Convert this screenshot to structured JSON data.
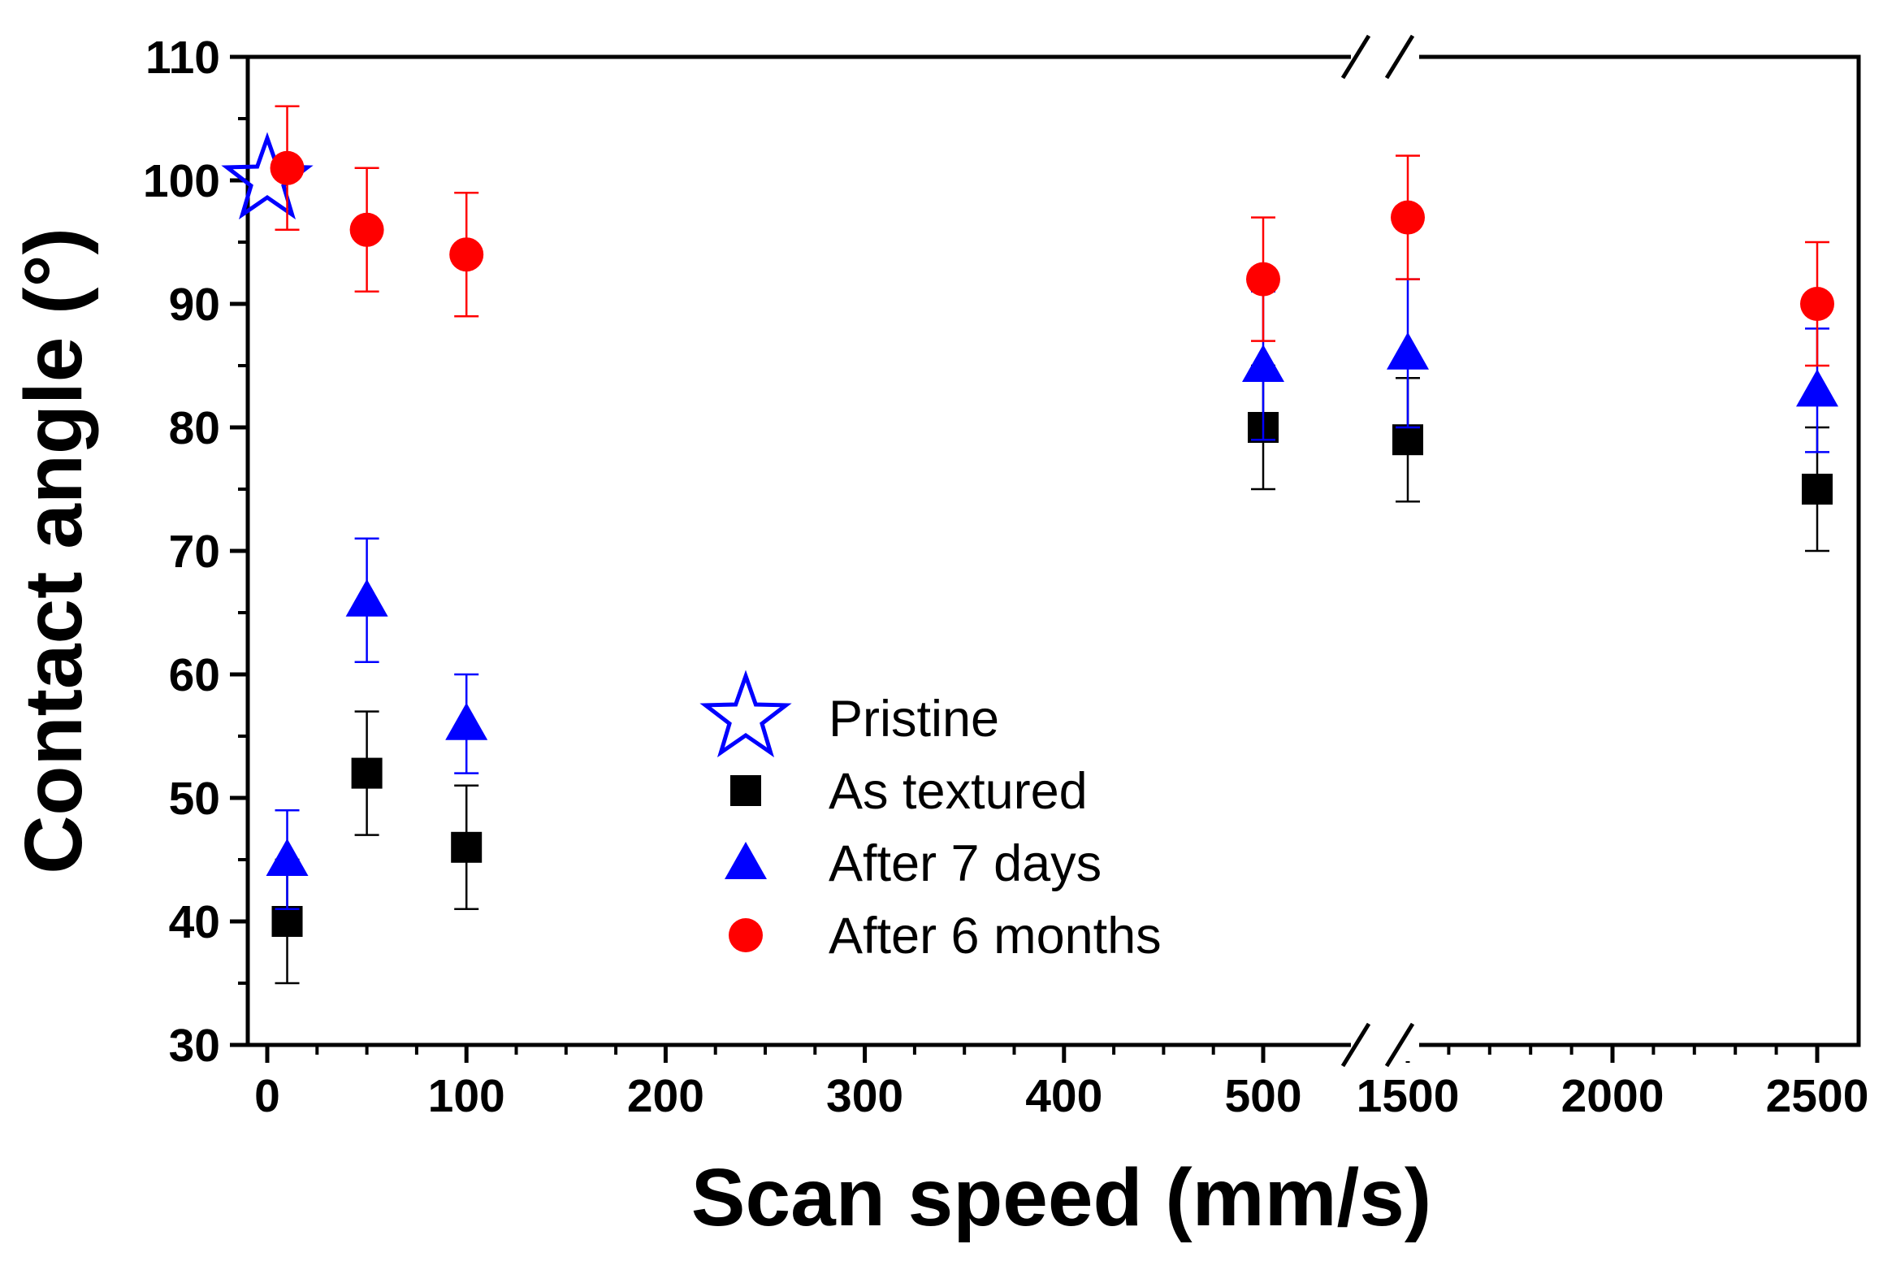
{
  "chart_data": {
    "type": "scatter",
    "title": "",
    "xlabel": "Scan speed (mm/s)",
    "ylabel": "Contact angle (°)",
    "ylim": [
      30,
      110
    ],
    "grid": false,
    "legend_position": "center",
    "x_axis": {
      "broken": true,
      "segments": [
        {
          "range": [
            0,
            500
          ]
        },
        {
          "range": [
            1500,
            2500
          ]
        }
      ],
      "tick_labels": [
        "0",
        "100",
        "200",
        "300",
        "400",
        "500",
        "1500",
        "2000",
        "2500"
      ]
    },
    "y_tick_labels": [
      "30",
      "40",
      "50",
      "60",
      "70",
      "80",
      "90",
      "100",
      "110"
    ],
    "series": [
      {
        "name": "Pristine",
        "marker": "star-open",
        "color": "#0000ff",
        "points": [
          {
            "x": 0,
            "y": 100
          }
        ]
      },
      {
        "name": "As textured",
        "marker": "square",
        "color": "#000000",
        "points": [
          {
            "x": 10,
            "y": 40,
            "err": 5
          },
          {
            "x": 50,
            "y": 52,
            "err": 5
          },
          {
            "x": 100,
            "y": 46,
            "err": 5
          },
          {
            "x": 500,
            "y": 80,
            "err": 5
          },
          {
            "x": 1500,
            "y": 79,
            "err": 5
          },
          {
            "x": 2500,
            "y": 75,
            "err": 5
          }
        ]
      },
      {
        "name": "After 7 days",
        "marker": "triangle",
        "color": "#0000ff",
        "points": [
          {
            "x": 10,
            "y": 45,
            "err": 4
          },
          {
            "x": 50,
            "y": 66,
            "err": 5
          },
          {
            "x": 100,
            "y": 56,
            "err": 4
          },
          {
            "x": 500,
            "y": 85,
            "err": 6
          },
          {
            "x": 1500,
            "y": 86,
            "err": 6
          },
          {
            "x": 2500,
            "y": 83,
            "err": 5
          }
        ]
      },
      {
        "name": "After 6 months",
        "marker": "circle",
        "color": "#ff0000",
        "points": [
          {
            "x": 10,
            "y": 101,
            "err": 5
          },
          {
            "x": 50,
            "y": 96,
            "err": 5
          },
          {
            "x": 100,
            "y": 94,
            "err": 5
          },
          {
            "x": 500,
            "y": 92,
            "err": 5
          },
          {
            "x": 1500,
            "y": 97,
            "err": 5
          },
          {
            "x": 2500,
            "y": 90,
            "err": 5
          }
        ]
      }
    ],
    "legend": {
      "entries": [
        "Pristine",
        "As textured",
        "After 7 days",
        "After 6 months"
      ]
    }
  }
}
